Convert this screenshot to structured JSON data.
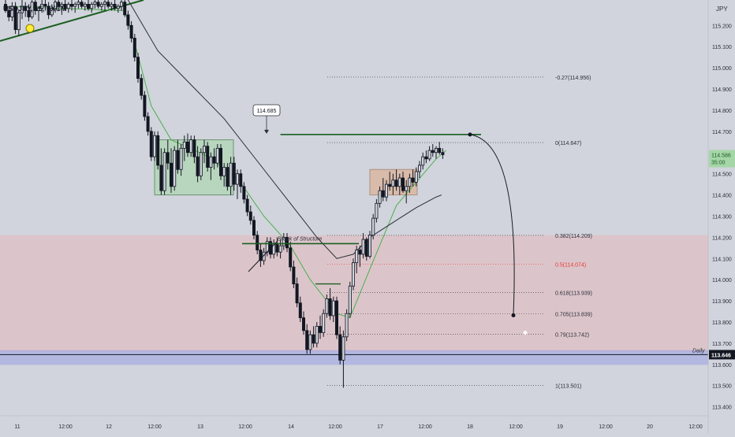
{
  "symbol": "USDJPY, 15, FXCM",
  "currency": "JPY",
  "colors": {
    "background": "#d1d4dc",
    "up_candle": "#d1d4dc",
    "down_candle": "#131722",
    "ema_fast": "#4caf50",
    "ema_slow": "#2a2e39",
    "demand_zone": "#f0a8a8",
    "daily_band": "#9aa0e6",
    "green_line": "#1b5e20",
    "box_green": "#a5d6a7",
    "box_orange": "#e0a882",
    "fib_red": "#e53935",
    "price_tag_green": "#a5d6a7",
    "price_tag_dark": "#131722"
  },
  "chart_data": {
    "type": "candlestick",
    "title": "USDJPY, 15, FXCM",
    "y_axis": {
      "ylim": [
        113.38,
        115.32
      ],
      "ticks": [
        115.2,
        115.1,
        115.0,
        114.9,
        114.8,
        114.7,
        114.6,
        114.5,
        114.4,
        114.3,
        114.2,
        114.1,
        114.0,
        113.9,
        113.8,
        113.7,
        113.6,
        113.5,
        113.4
      ],
      "tick_labels": [
        "115.200",
        "115.100",
        "115.000",
        "114.900",
        "114.800",
        "114.700",
        "114.600",
        "114.500",
        "114.400",
        "114.300",
        "114.200",
        "114.100",
        "114.000",
        "113.900",
        "113.800",
        "113.700",
        "113.600",
        "113.500",
        "113.400"
      ]
    },
    "x_axis": {
      "tick_labels": [
        "11",
        "12:00",
        "12",
        "12:00",
        "13",
        "12:00",
        "14",
        "12:00",
        "17",
        "12:00",
        "18",
        "12:00",
        "19",
        "12:00",
        "20",
        "12:00"
      ]
    },
    "candles": [
      {
        "o": 115.3,
        "h": 115.32,
        "l": 115.26,
        "c": 115.27
      },
      {
        "o": 115.27,
        "h": 115.29,
        "l": 115.22,
        "c": 115.24
      },
      {
        "o": 115.24,
        "h": 115.31,
        "l": 115.22,
        "c": 115.29
      },
      {
        "o": 115.29,
        "h": 115.31,
        "l": 115.16,
        "c": 115.18
      },
      {
        "o": 115.18,
        "h": 115.27,
        "l": 115.15,
        "c": 115.26
      },
      {
        "o": 115.26,
        "h": 115.32,
        "l": 115.23,
        "c": 115.29
      },
      {
        "o": 115.29,
        "h": 115.31,
        "l": 115.24,
        "c": 115.27
      },
      {
        "o": 115.27,
        "h": 115.3,
        "l": 115.22,
        "c": 115.24
      },
      {
        "o": 115.24,
        "h": 115.32,
        "l": 115.23,
        "c": 115.31
      },
      {
        "o": 115.31,
        "h": 115.32,
        "l": 115.25,
        "c": 115.27
      },
      {
        "o": 115.27,
        "h": 115.29,
        "l": 115.22,
        "c": 115.28
      },
      {
        "o": 115.28,
        "h": 115.32,
        "l": 115.26,
        "c": 115.3
      },
      {
        "o": 115.3,
        "h": 115.32,
        "l": 115.27,
        "c": 115.29
      },
      {
        "o": 115.29,
        "h": 115.31,
        "l": 115.23,
        "c": 115.25
      },
      {
        "o": 115.25,
        "h": 115.3,
        "l": 115.24,
        "c": 115.28
      },
      {
        "o": 115.28,
        "h": 115.32,
        "l": 115.26,
        "c": 115.31
      },
      {
        "o": 115.31,
        "h": 115.32,
        "l": 115.27,
        "c": 115.29
      },
      {
        "o": 115.29,
        "h": 115.31,
        "l": 115.25,
        "c": 115.3
      },
      {
        "o": 115.3,
        "h": 115.32,
        "l": 115.27,
        "c": 115.28
      },
      {
        "o": 115.28,
        "h": 115.31,
        "l": 115.26,
        "c": 115.3
      },
      {
        "o": 115.3,
        "h": 115.32,
        "l": 115.27,
        "c": 115.29
      },
      {
        "o": 115.29,
        "h": 115.31,
        "l": 115.26,
        "c": 115.3
      },
      {
        "o": 115.3,
        "h": 115.32,
        "l": 115.28,
        "c": 115.31
      },
      {
        "o": 115.31,
        "h": 115.32,
        "l": 115.28,
        "c": 115.29
      },
      {
        "o": 115.29,
        "h": 115.31,
        "l": 115.27,
        "c": 115.3
      },
      {
        "o": 115.3,
        "h": 115.32,
        "l": 115.27,
        "c": 115.28
      },
      {
        "o": 115.28,
        "h": 115.31,
        "l": 115.26,
        "c": 115.3
      },
      {
        "o": 115.3,
        "h": 115.32,
        "l": 115.28,
        "c": 115.31
      },
      {
        "o": 115.31,
        "h": 115.32,
        "l": 115.28,
        "c": 115.29
      },
      {
        "o": 115.29,
        "h": 115.31,
        "l": 115.27,
        "c": 115.3
      },
      {
        "o": 115.3,
        "h": 115.32,
        "l": 115.27,
        "c": 115.31
      },
      {
        "o": 115.31,
        "h": 115.32,
        "l": 115.28,
        "c": 115.29
      },
      {
        "o": 115.29,
        "h": 115.31,
        "l": 115.27,
        "c": 115.3
      },
      {
        "o": 115.3,
        "h": 115.32,
        "l": 115.27,
        "c": 115.28
      },
      {
        "o": 115.28,
        "h": 115.3,
        "l": 115.26,
        "c": 115.29
      },
      {
        "o": 115.29,
        "h": 115.32,
        "l": 115.27,
        "c": 115.31
      },
      {
        "o": 115.31,
        "h": 115.32,
        "l": 115.24,
        "c": 115.25
      },
      {
        "o": 115.25,
        "h": 115.27,
        "l": 115.18,
        "c": 115.2
      },
      {
        "o": 115.2,
        "h": 115.22,
        "l": 115.12,
        "c": 115.14
      },
      {
        "o": 115.14,
        "h": 115.16,
        "l": 115.03,
        "c": 115.05
      },
      {
        "o": 115.05,
        "h": 115.07,
        "l": 114.93,
        "c": 114.95
      },
      {
        "o": 114.95,
        "h": 114.97,
        "l": 114.85,
        "c": 114.87
      },
      {
        "o": 114.87,
        "h": 114.89,
        "l": 114.75,
        "c": 114.77
      },
      {
        "o": 114.77,
        "h": 114.79,
        "l": 114.68,
        "c": 114.7
      },
      {
        "o": 114.7,
        "h": 114.72,
        "l": 114.56,
        "c": 114.58
      },
      {
        "o": 114.58,
        "h": 114.7,
        "l": 114.56,
        "c": 114.68
      },
      {
        "o": 114.68,
        "h": 114.7,
        "l": 114.52,
        "c": 114.54
      },
      {
        "o": 114.54,
        "h": 114.62,
        "l": 114.4,
        "c": 114.42
      },
      {
        "o": 114.42,
        "h": 114.62,
        "l": 114.4,
        "c": 114.6
      },
      {
        "o": 114.6,
        "h": 114.66,
        "l": 114.52,
        "c": 114.55
      },
      {
        "o": 114.55,
        "h": 114.62,
        "l": 114.41,
        "c": 114.44
      },
      {
        "o": 114.44,
        "h": 114.63,
        "l": 114.42,
        "c": 114.61
      },
      {
        "o": 114.61,
        "h": 114.66,
        "l": 114.5,
        "c": 114.52
      },
      {
        "o": 114.52,
        "h": 114.64,
        "l": 114.49,
        "c": 114.62
      },
      {
        "o": 114.62,
        "h": 114.68,
        "l": 114.56,
        "c": 114.65
      },
      {
        "o": 114.65,
        "h": 114.69,
        "l": 114.58,
        "c": 114.6
      },
      {
        "o": 114.6,
        "h": 114.68,
        "l": 114.58,
        "c": 114.66
      },
      {
        "o": 114.66,
        "h": 114.68,
        "l": 114.55,
        "c": 114.58
      },
      {
        "o": 114.58,
        "h": 114.63,
        "l": 114.46,
        "c": 114.49
      },
      {
        "o": 114.49,
        "h": 114.62,
        "l": 114.47,
        "c": 114.6
      },
      {
        "o": 114.6,
        "h": 114.66,
        "l": 114.55,
        "c": 114.63
      },
      {
        "o": 114.63,
        "h": 114.65,
        "l": 114.51,
        "c": 114.53
      },
      {
        "o": 114.53,
        "h": 114.6,
        "l": 114.47,
        "c": 114.58
      },
      {
        "o": 114.58,
        "h": 114.62,
        "l": 114.52,
        "c": 114.55
      },
      {
        "o": 114.55,
        "h": 114.64,
        "l": 114.53,
        "c": 114.62
      },
      {
        "o": 114.62,
        "h": 114.64,
        "l": 114.47,
        "c": 114.49
      },
      {
        "o": 114.49,
        "h": 114.55,
        "l": 114.44,
        "c": 114.53
      },
      {
        "o": 114.53,
        "h": 114.55,
        "l": 114.42,
        "c": 114.44
      },
      {
        "o": 114.44,
        "h": 114.58,
        "l": 114.4,
        "c": 114.55
      },
      {
        "o": 114.55,
        "h": 114.58,
        "l": 114.42,
        "c": 114.45
      },
      {
        "o": 114.45,
        "h": 114.52,
        "l": 114.38,
        "c": 114.5
      },
      {
        "o": 114.5,
        "h": 114.52,
        "l": 114.41,
        "c": 114.44
      },
      {
        "o": 114.44,
        "h": 114.46,
        "l": 114.36,
        "c": 114.38
      },
      {
        "o": 114.38,
        "h": 114.4,
        "l": 114.3,
        "c": 114.32
      },
      {
        "o": 114.32,
        "h": 114.35,
        "l": 114.26,
        "c": 114.28
      },
      {
        "o": 114.28,
        "h": 114.3,
        "l": 114.19,
        "c": 114.21
      },
      {
        "o": 114.21,
        "h": 114.23,
        "l": 114.12,
        "c": 114.14
      },
      {
        "o": 114.14,
        "h": 114.17,
        "l": 114.06,
        "c": 114.09
      },
      {
        "o": 114.09,
        "h": 114.15,
        "l": 114.07,
        "c": 114.13
      },
      {
        "o": 114.13,
        "h": 114.2,
        "l": 114.11,
        "c": 114.18
      },
      {
        "o": 114.18,
        "h": 114.2,
        "l": 114.1,
        "c": 114.12
      },
      {
        "o": 114.12,
        "h": 114.19,
        "l": 114.1,
        "c": 114.17
      },
      {
        "o": 114.17,
        "h": 114.2,
        "l": 114.11,
        "c": 114.13
      },
      {
        "o": 114.13,
        "h": 114.19,
        "l": 114.1,
        "c": 114.16
      },
      {
        "o": 114.16,
        "h": 114.22,
        "l": 114.14,
        "c": 114.2
      },
      {
        "o": 114.2,
        "h": 114.22,
        "l": 114.13,
        "c": 114.15
      },
      {
        "o": 114.15,
        "h": 114.18,
        "l": 114.04,
        "c": 114.06
      },
      {
        "o": 114.06,
        "h": 114.09,
        "l": 113.96,
        "c": 113.98
      },
      {
        "o": 113.98,
        "h": 114.01,
        "l": 113.87,
        "c": 113.89
      },
      {
        "o": 113.89,
        "h": 113.92,
        "l": 113.8,
        "c": 113.82
      },
      {
        "o": 113.82,
        "h": 113.85,
        "l": 113.74,
        "c": 113.76
      },
      {
        "o": 113.76,
        "h": 113.79,
        "l": 113.65,
        "c": 113.67
      },
      {
        "o": 113.67,
        "h": 113.76,
        "l": 113.65,
        "c": 113.74
      },
      {
        "o": 113.74,
        "h": 113.78,
        "l": 113.68,
        "c": 113.7
      },
      {
        "o": 113.7,
        "h": 113.8,
        "l": 113.68,
        "c": 113.78
      },
      {
        "o": 113.78,
        "h": 113.83,
        "l": 113.72,
        "c": 113.75
      },
      {
        "o": 113.75,
        "h": 113.86,
        "l": 113.73,
        "c": 113.84
      },
      {
        "o": 113.84,
        "h": 113.93,
        "l": 113.82,
        "c": 113.91
      },
      {
        "o": 113.91,
        "h": 113.96,
        "l": 113.81,
        "c": 113.83
      },
      {
        "o": 113.83,
        "h": 113.92,
        "l": 113.8,
        "c": 113.9
      },
      {
        "o": 113.9,
        "h": 113.92,
        "l": 113.72,
        "c": 113.74
      },
      {
        "o": 113.74,
        "h": 113.78,
        "l": 113.6,
        "c": 113.62
      },
      {
        "o": 113.62,
        "h": 113.76,
        "l": 113.49,
        "c": 113.73
      },
      {
        "o": 113.73,
        "h": 113.86,
        "l": 113.71,
        "c": 113.84
      },
      {
        "o": 113.84,
        "h": 113.99,
        "l": 113.82,
        "c": 113.97
      },
      {
        "o": 113.97,
        "h": 114.1,
        "l": 113.95,
        "c": 114.08
      },
      {
        "o": 114.08,
        "h": 114.16,
        "l": 114.03,
        "c": 114.14
      },
      {
        "o": 114.14,
        "h": 114.16,
        "l": 114.06,
        "c": 114.12
      },
      {
        "o": 114.12,
        "h": 114.22,
        "l": 114.1,
        "c": 114.19
      },
      {
        "o": 114.19,
        "h": 114.2,
        "l": 114.09,
        "c": 114.11
      },
      {
        "o": 114.11,
        "h": 114.23,
        "l": 114.1,
        "c": 114.21
      },
      {
        "o": 114.21,
        "h": 114.31,
        "l": 114.19,
        "c": 114.29
      },
      {
        "o": 114.29,
        "h": 114.38,
        "l": 114.27,
        "c": 114.36
      },
      {
        "o": 114.36,
        "h": 114.44,
        "l": 114.34,
        "c": 114.42
      },
      {
        "o": 114.42,
        "h": 114.48,
        "l": 114.37,
        "c": 114.39
      },
      {
        "o": 114.39,
        "h": 114.47,
        "l": 114.37,
        "c": 114.45
      },
      {
        "o": 114.45,
        "h": 114.51,
        "l": 114.42,
        "c": 114.44
      },
      {
        "o": 114.44,
        "h": 114.5,
        "l": 114.4,
        "c": 114.47
      },
      {
        "o": 114.47,
        "h": 114.52,
        "l": 114.42,
        "c": 114.44
      },
      {
        "o": 114.44,
        "h": 114.5,
        "l": 114.4,
        "c": 114.48
      },
      {
        "o": 114.48,
        "h": 114.51,
        "l": 114.41,
        "c": 114.42
      },
      {
        "o": 114.42,
        "h": 114.47,
        "l": 114.36,
        "c": 114.44
      },
      {
        "o": 114.44,
        "h": 114.5,
        "l": 114.41,
        "c": 114.48
      },
      {
        "o": 114.48,
        "h": 114.52,
        "l": 114.44,
        "c": 114.46
      },
      {
        "o": 114.46,
        "h": 114.53,
        "l": 114.44,
        "c": 114.51
      },
      {
        "o": 114.51,
        "h": 114.56,
        "l": 114.48,
        "c": 114.54
      },
      {
        "o": 114.54,
        "h": 114.6,
        "l": 114.52,
        "c": 114.58
      },
      {
        "o": 114.58,
        "h": 114.61,
        "l": 114.55,
        "c": 114.57
      },
      {
        "o": 114.57,
        "h": 114.63,
        "l": 114.56,
        "c": 114.61
      },
      {
        "o": 114.61,
        "h": 114.64,
        "l": 114.58,
        "c": 114.6
      },
      {
        "o": 114.6,
        "h": 114.63,
        "l": 114.57,
        "c": 114.62
      },
      {
        "o": 114.62,
        "h": 114.65,
        "l": 114.59,
        "c": 114.6
      },
      {
        "o": 114.6,
        "h": 114.62,
        "l": 114.57,
        "c": 114.59
      }
    ],
    "ema_fast": [
      [
        0,
        115.29
      ],
      [
        36,
        115.27
      ],
      [
        40,
        115.06
      ],
      [
        44,
        114.82
      ],
      [
        50,
        114.66
      ],
      [
        60,
        114.59
      ],
      [
        70,
        114.48
      ],
      [
        78,
        114.3
      ],
      [
        86,
        114.16
      ],
      [
        92,
        114.0
      ],
      [
        100,
        113.84
      ],
      [
        104,
        113.82
      ],
      [
        110,
        114.05
      ],
      [
        118,
        114.35
      ],
      [
        124,
        114.46
      ],
      [
        130,
        114.57
      ],
      [
        133,
        114.61
      ]
    ],
    "ema_slow": [
      [
        37,
        115.32
      ],
      [
        46,
        115.08
      ],
      [
        56,
        114.92
      ],
      [
        66,
        114.76
      ],
      [
        76,
        114.56
      ],
      [
        86,
        114.36
      ],
      [
        94,
        114.2
      ],
      [
        100,
        114.1
      ],
      [
        105,
        114.12
      ],
      [
        110,
        114.2
      ],
      [
        118,
        114.28
      ],
      [
        124,
        114.34
      ],
      [
        130,
        114.39
      ]
    ],
    "y_labels": {
      "current_price": "114.586",
      "current_time": "35:00",
      "daily_level": "113.646",
      "daily_label": "Daily"
    },
    "fib_levels": [
      {
        "ratio": "-0.27",
        "price": 114.956,
        "label": "-0.27(114.956)",
        "color": "#2a2e39"
      },
      {
        "ratio": "0",
        "price": 114.647,
        "label": "0(114.647)",
        "color": "#2a2e39"
      },
      {
        "ratio": "0.382",
        "price": 114.209,
        "label": "0.382(114.209)",
        "color": "#2a2e39"
      },
      {
        "ratio": "0.5",
        "price": 114.074,
        "label": "0.5(114.074)",
        "color": "#e53935"
      },
      {
        "ratio": "0.618",
        "price": 113.939,
        "label": "0.618(113.939)",
        "color": "#2a2e39"
      },
      {
        "ratio": "0.705",
        "price": 113.839,
        "label": "0.705(113.839)",
        "color": "#2a2e39"
      },
      {
        "ratio": "0.79",
        "price": 113.742,
        "label": "0.79(113.742)",
        "color": "#2a2e39"
      },
      {
        "ratio": "1",
        "price": 113.501,
        "label": "1(113.501)",
        "color": "#2a2e39"
      }
    ],
    "annotations": {
      "high_price_label": "114.685",
      "bos_label": "Break of Structure"
    },
    "zones": {
      "demand_top": 114.21,
      "demand_bottom": 113.66,
      "daily_top": 113.66,
      "daily_bottom": 113.62,
      "high_line": 114.685,
      "bos_level": 114.17,
      "box_left_top": 114.66,
      "box_left_bottom": 114.4,
      "box_right_top": 114.52,
      "box_right_bottom": 114.4
    }
  }
}
